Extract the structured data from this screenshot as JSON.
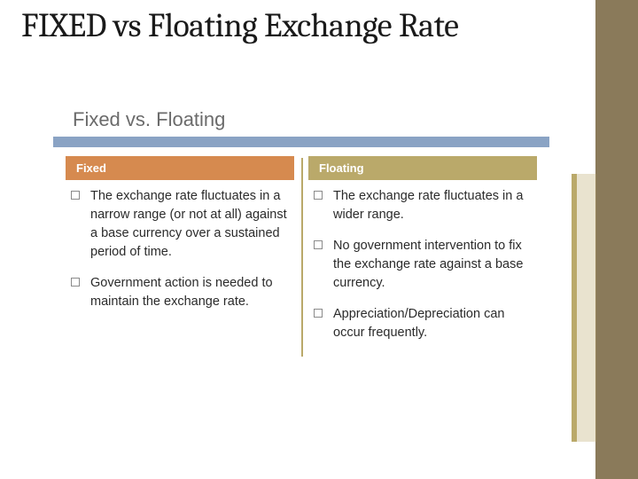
{
  "title": "FIXED vs Floating Exchange Rate",
  "inner_title": "Fixed vs. Floating",
  "colors": {
    "right_bar": "#8a7a5a",
    "rule": "#8aa3c4",
    "fixed_header": "#d68a4f",
    "floating_header": "#baa96a",
    "accent": "#baa96a"
  },
  "columns": {
    "fixed": {
      "header": "Fixed",
      "bullets": [
        "The exchange rate fluctuates in a narrow range (or not at all) against a base currency over a sustained period of time.",
        "Government action is needed to maintain the exchange rate."
      ]
    },
    "floating": {
      "header": "Floating",
      "bullets": [
        "The exchange rate fluctuates in a wider range.",
        "No government intervention to fix the exchange rate against a base currency.",
        "Appreciation/Depreciation can occur frequently."
      ]
    }
  }
}
